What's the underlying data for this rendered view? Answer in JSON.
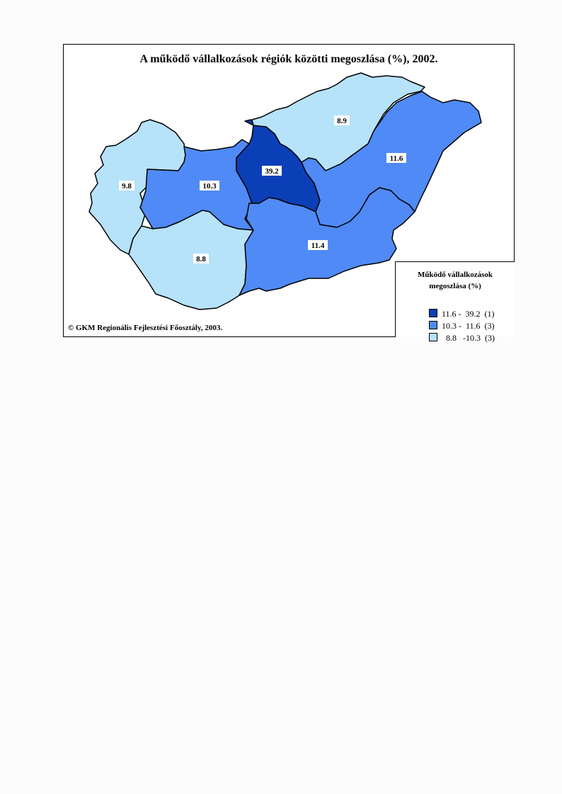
{
  "map": {
    "title": "A működő vállalkozások régiók közötti megoszlása (%), 2002.",
    "credit": "© GKM Regionális Fejlesztési Főosztály, 2003."
  },
  "colors": {
    "dark": "#0b3fb8",
    "medium": "#4f8af6",
    "light": "#b6e2fa"
  },
  "regions": [
    {
      "id": "kozep-magyarorszag",
      "value": "39.2",
      "class": "dark"
    },
    {
      "id": "eszak-alfold",
      "value": "11.6",
      "class": "medium"
    },
    {
      "id": "del-alfold",
      "value": "11.4",
      "class": "medium"
    },
    {
      "id": "kozep-dunantul",
      "value": "10.3",
      "class": "medium"
    },
    {
      "id": "nyugat-dunantul",
      "value": "9.8",
      "class": "light"
    },
    {
      "id": "eszak-magyarorszag",
      "value": "8.9",
      "class": "light"
    },
    {
      "id": "del-dunantul",
      "value": "8.8",
      "class": "light"
    }
  ],
  "legend": {
    "title_line1": "Működő vállalkozások",
    "title_line2": "megoszlása (%)",
    "items": [
      {
        "label": "11.6 -  39.2  (1)",
        "class": "dark"
      },
      {
        "label": "10.3 -  11.6  (3)",
        "class": "medium"
      },
      {
        "label": "  8.8   -10.3  (3)",
        "class": "light"
      }
    ]
  }
}
